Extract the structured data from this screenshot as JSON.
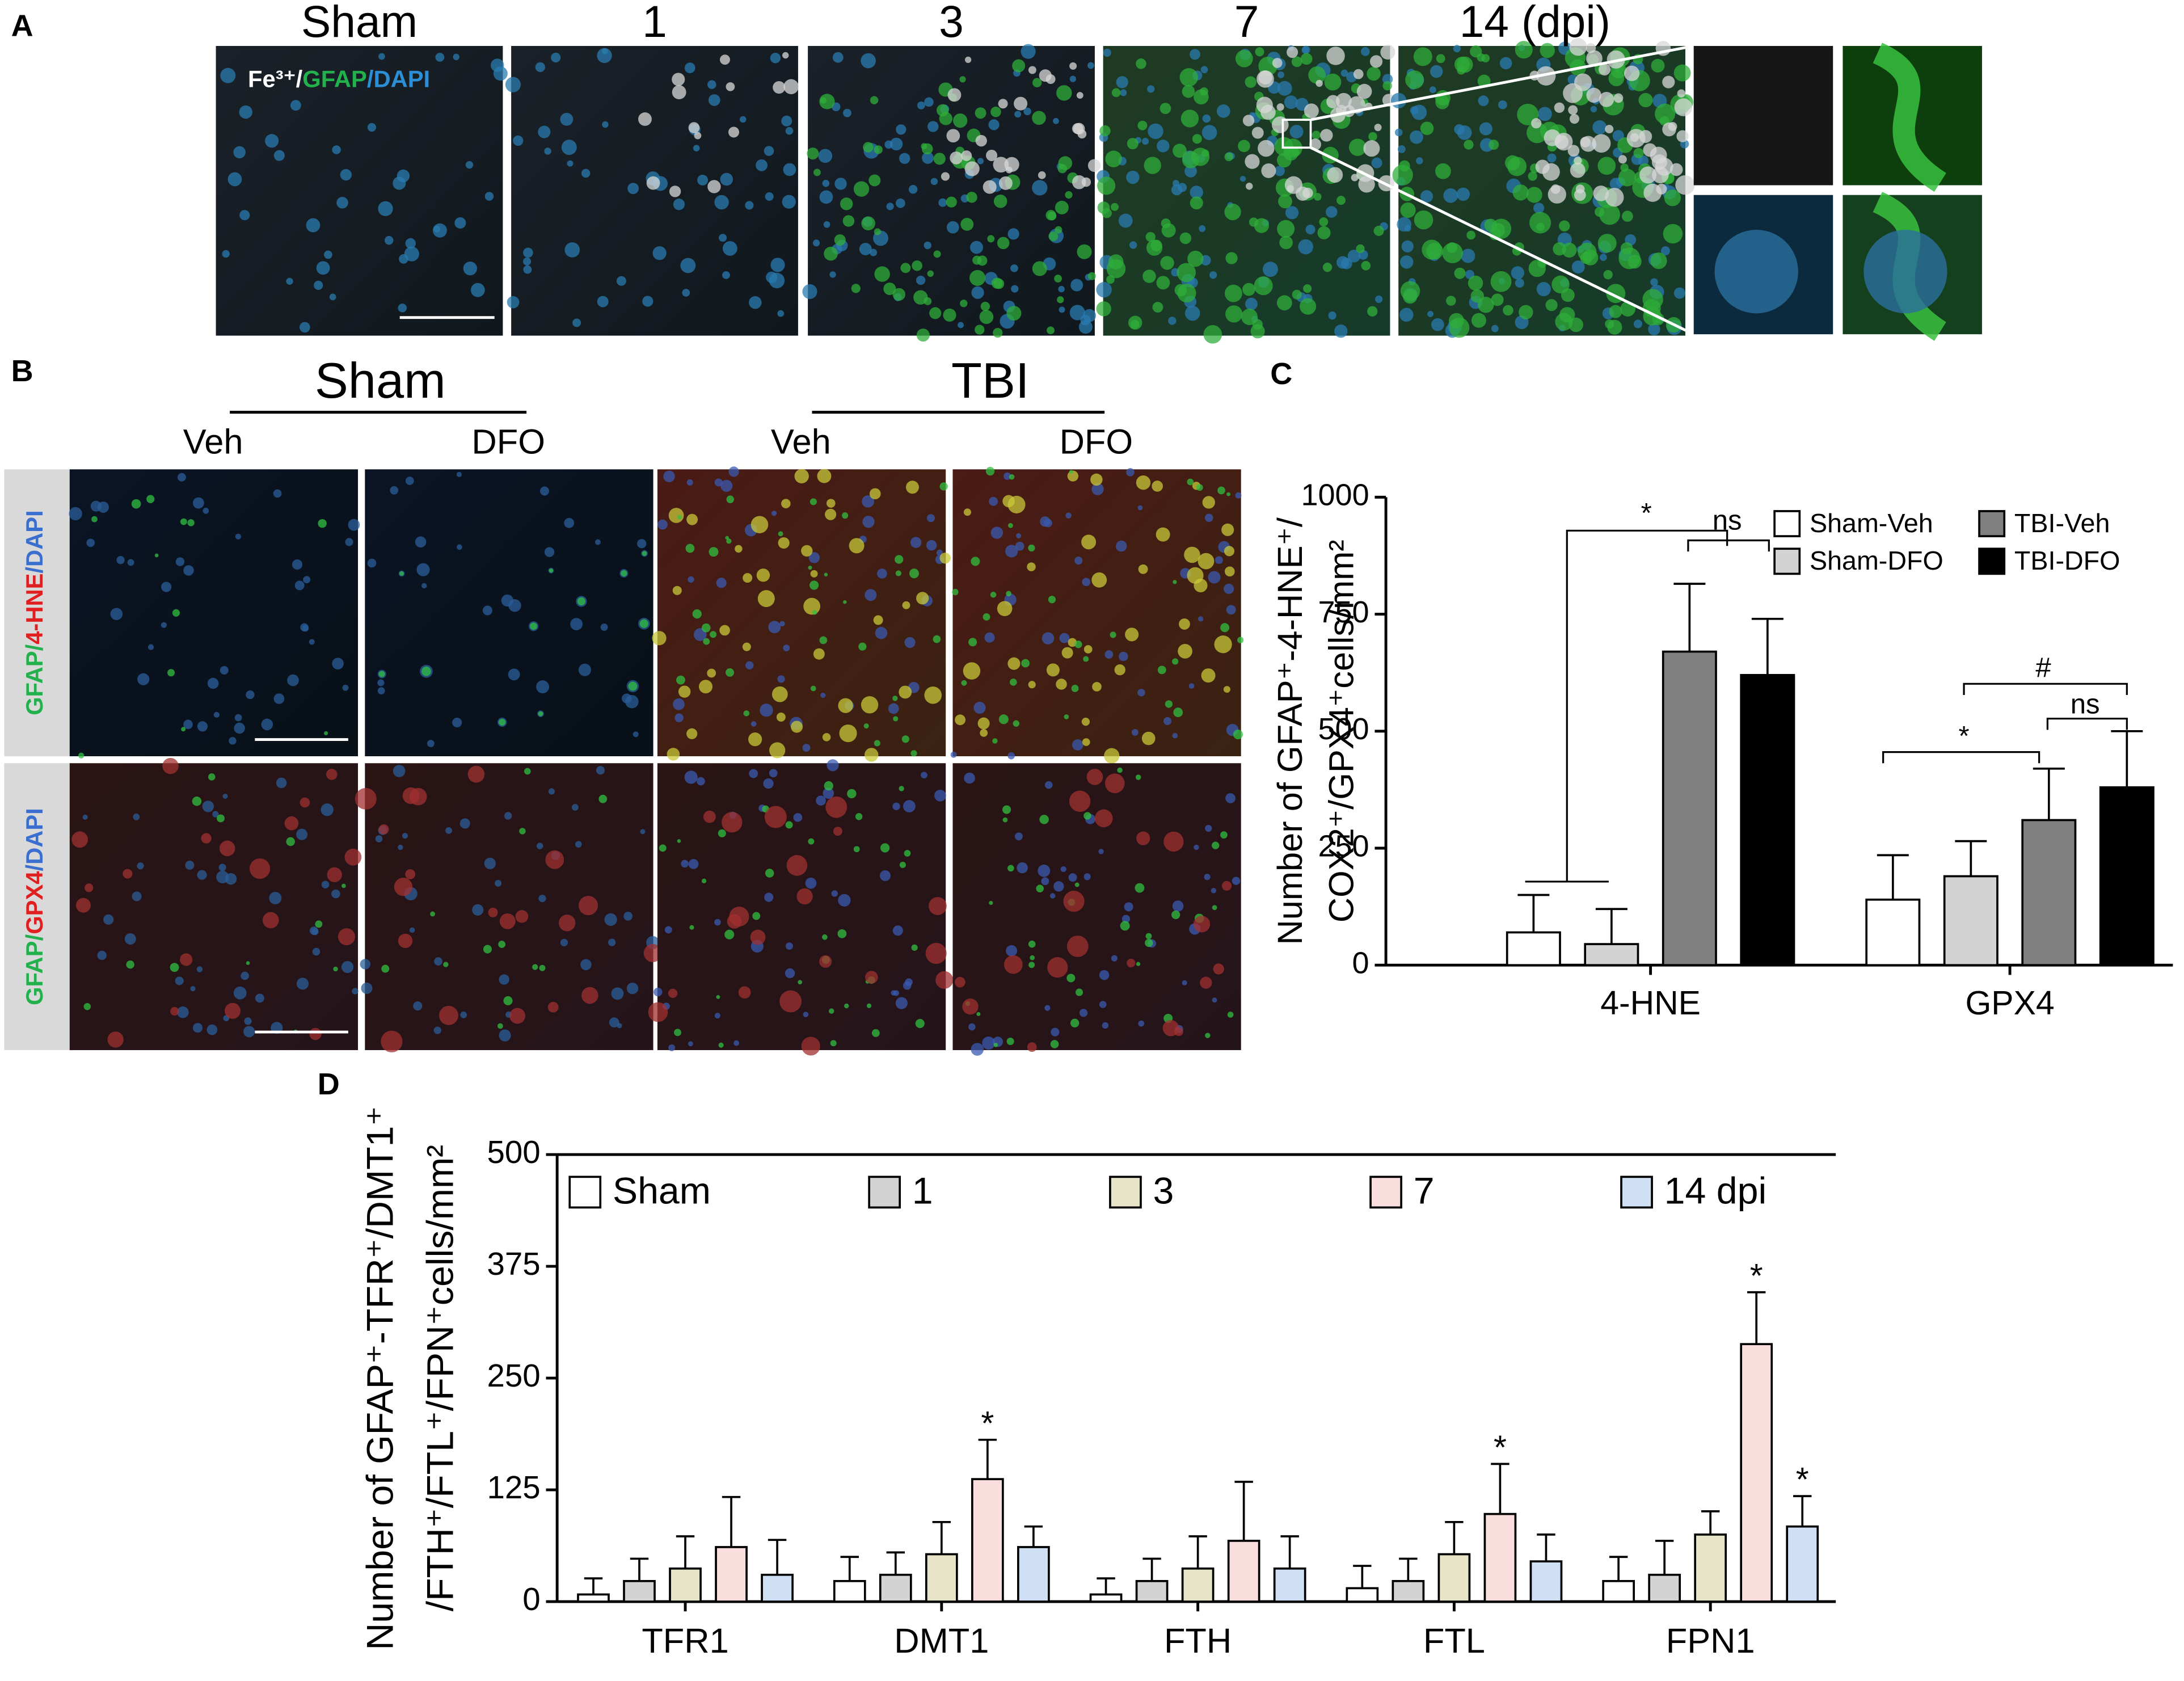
{
  "panel_a": {
    "label": "A",
    "columns": [
      "Sham",
      "1",
      "3",
      "7",
      "14 (dpi)"
    ],
    "stain": [
      "Fe³⁺/",
      "GFAP",
      "/DAPI"
    ]
  },
  "panel_b": {
    "label": "B",
    "groups": [
      "Sham",
      "TBI"
    ],
    "treatments": [
      "Veh",
      "DFO",
      "Veh",
      "DFO"
    ],
    "rows": [
      [
        "GFAP/",
        "4-HNE",
        "/DAPI"
      ],
      [
        "GFAP/",
        "GPX4",
        "/DAPI"
      ]
    ]
  },
  "chart_data": [
    {
      "type": "bar",
      "panel_label": "C",
      "categories": [
        "4-HNE",
        "GPX4"
      ],
      "series": [
        {
          "name": "Sham-Veh",
          "color": "#ffffff",
          "values": [
            70,
            140
          ],
          "errors": [
            80,
            95
          ]
        },
        {
          "name": "Sham-DFO",
          "color": "#d3d3d3",
          "values": [
            45,
            190
          ],
          "errors": [
            75,
            75
          ]
        },
        {
          "name": "TBI-Veh",
          "color": "#808080",
          "values": [
            670,
            310
          ],
          "errors": [
            145,
            110
          ]
        },
        {
          "name": "TBI-DFO",
          "color": "#000000",
          "values": [
            620,
            380
          ],
          "errors": [
            120,
            120
          ]
        }
      ],
      "ylim": [
        0,
        1000
      ],
      "yticks": [
        0,
        250,
        500,
        750,
        1000
      ],
      "ylabel": [
        "Number of GFAP⁺-4-HNE⁺/",
        "COX2⁺/GPX4⁺cells/mm²"
      ],
      "annotations": [
        "*",
        "ns",
        "*",
        "#",
        "ns"
      ]
    },
    {
      "type": "bar",
      "panel_label": "D",
      "categories": [
        "TFR1",
        "DMT1",
        "FTH",
        "FTL",
        "FPN1"
      ],
      "series": [
        {
          "name": "Sham",
          "color": "#ffffff",
          "values": [
            8,
            23,
            8,
            15,
            23
          ],
          "errors": [
            18,
            27,
            18,
            25,
            27
          ]
        },
        {
          "name": "1",
          "color": "#d3d3d3",
          "values": [
            23,
            30,
            23,
            23,
            30
          ],
          "errors": [
            25,
            25,
            25,
            25,
            38
          ]
        },
        {
          "name": "3",
          "color": "#e8e4c8",
          "values": [
            37,
            53,
            37,
            53,
            75
          ],
          "errors": [
            36,
            36,
            36,
            36,
            26
          ]
        },
        {
          "name": "7",
          "color": "#fadede",
          "values": [
            61,
            137,
            68,
            98,
            288
          ],
          "errors": [
            56,
            44,
            66,
            56,
            58
          ]
        },
        {
          "name": "14 dpi",
          "color": "#cfe0f5",
          "values": [
            30,
            61,
            37,
            45,
            84
          ],
          "errors": [
            39,
            23,
            36,
            30,
            34
          ]
        }
      ],
      "ylim": [
        0,
        500
      ],
      "yticks": [
        0,
        125,
        250,
        375,
        500
      ],
      "ylabel": [
        "Number of GFAP⁺-TFR⁺/DMT1⁺",
        "/FTH⁺/FTL⁺/FPN⁺cells/mm²"
      ],
      "annotations": [
        "*",
        "*",
        "*",
        "*"
      ]
    }
  ]
}
